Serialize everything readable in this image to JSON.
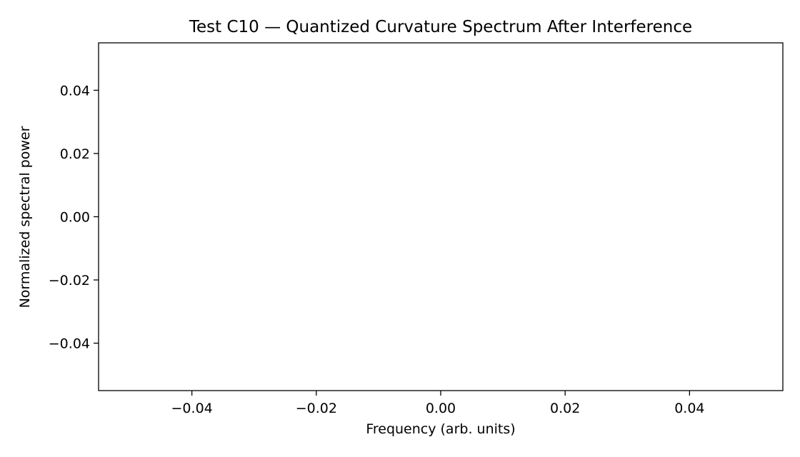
{
  "chart_data": {
    "type": "line",
    "title": "Test C10 — Quantized Curvature Spectrum After Interference",
    "xlabel": "Frequency (arb. units)",
    "ylabel": "Normalized spectral power",
    "xlim": [
      -0.055,
      0.055
    ],
    "ylim": [
      -0.055,
      0.055
    ],
    "xticks": [
      -0.04,
      -0.02,
      0.0,
      0.02,
      0.04
    ],
    "yticks": [
      -0.04,
      -0.02,
      0.0,
      0.02,
      0.04
    ],
    "xtick_labels": [
      "−0.04",
      "−0.02",
      "0.00",
      "0.02",
      "0.04"
    ],
    "ytick_labels": [
      "−0.04",
      "−0.02",
      "0.00",
      "0.02",
      "0.04"
    ],
    "series": [],
    "grid": false,
    "legend": "none"
  }
}
